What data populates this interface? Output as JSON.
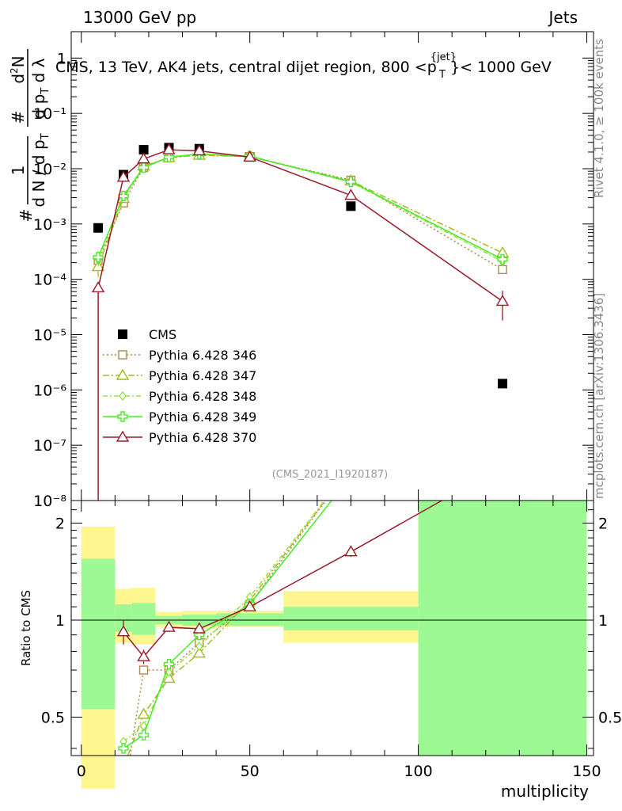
{
  "header": {
    "left": "13000 GeV pp",
    "right": "Jets"
  },
  "title": "CMS, 13 TeV, AK4 jets, central dijet region, 800 <p",
  "title_sup": "{jet}",
  "title_sub": "T",
  "title_end": "}< 1000 GeV",
  "watermark": "(CMS_2021_I1920187)",
  "side_top": "Rivet 4.1.0, ≥ 100k events",
  "side_bottom": "mcplots.cern.ch [arXiv:1306.3436]",
  "ratio_ylabel": "Ratio to CMS",
  "xlabel": "multiplicity",
  "chart_data": [
    {
      "type": "line",
      "panel": "main",
      "yscale": "log",
      "xlim": [
        -3,
        152
      ],
      "ylim": [
        1e-08,
        3
      ],
      "y_tick_labels": [
        "10⁻⁸",
        "10⁻⁷",
        "10⁻⁶",
        "10⁻⁵",
        "10⁻⁴",
        "10⁻³",
        "10⁻²",
        "10⁻¹",
        "1"
      ],
      "bins": [
        [
          0,
          10
        ],
        [
          10,
          15
        ],
        [
          15,
          22
        ],
        [
          22,
          30
        ],
        [
          30,
          40
        ],
        [
          40,
          60
        ],
        [
          60,
          100
        ],
        [
          100,
          150
        ]
      ],
      "legend_position": "left-middle",
      "series": [
        {
          "name": "CMS",
          "color": "#000000",
          "marker": "square-filled",
          "x": [
            5,
            12.5,
            18.5,
            26,
            35,
            50,
            80,
            125
          ],
          "y": [
            0.00085,
            0.0078,
            0.022,
            0.024,
            0.023,
            0.0163,
            0.0021,
            1.3e-06
          ]
        },
        {
          "name": "Pythia 6.428 346",
          "color": "#b08850",
          "marker": "square-open",
          "dash": "2,3",
          "x": [
            5,
            12.5,
            18.5,
            26,
            35,
            50,
            80,
            125
          ],
          "y": [
            0.00022,
            0.0024,
            0.0105,
            0.016,
            0.018,
            0.0165,
            0.0062,
            0.00015
          ],
          "yerr": [
            6e-05,
            0,
            0,
            0,
            0,
            0,
            0,
            2e-05
          ]
        },
        {
          "name": "Pythia 6.428 347",
          "color": "#a8b820",
          "marker": "triangle-open",
          "dash": "8,3,2,3",
          "x": [
            5,
            12.5,
            18.5,
            26,
            35,
            50,
            80,
            125
          ],
          "y": [
            0.00017,
            0.0029,
            0.0112,
            0.0158,
            0.0175,
            0.0165,
            0.006,
            0.0003
          ],
          "yerr": [
            6e-05,
            0,
            0,
            0,
            0,
            0,
            0,
            5e-05
          ]
        },
        {
          "name": "Pythia 6.428 348",
          "color": "#99e04a",
          "marker": "diamond-open",
          "dash": "6,3,2,3",
          "x": [
            5,
            12.5,
            18.5,
            26,
            35,
            50,
            80,
            125
          ],
          "y": [
            0.00023,
            0.0033,
            0.0108,
            0.016,
            0.0182,
            0.017,
            0.0057,
            0.00021
          ],
          "yerr": [
            6e-05,
            0,
            0,
            0,
            0,
            0,
            0,
            4e-05
          ]
        },
        {
          "name": "Pythia 6.428 349",
          "color": "#44ee22",
          "marker": "cross-open",
          "dash": "",
          "x": [
            5,
            12.5,
            18.5,
            26,
            35,
            50,
            80,
            125
          ],
          "y": [
            0.00025,
            0.0032,
            0.0105,
            0.0162,
            0.0185,
            0.0168,
            0.0058,
            0.00023
          ],
          "yerr": [
            7e-05,
            0,
            0,
            0,
            0,
            0,
            0,
            4e-05
          ]
        },
        {
          "name": "Pythia 6.428 370",
          "color": "#9b1b2b",
          "marker": "triangle-open",
          "dash": "",
          "x": [
            5,
            12.5,
            18.5,
            26,
            35,
            50,
            80,
            125
          ],
          "y": [
            7e-05,
            0.007,
            0.015,
            0.022,
            0.021,
            0.0162,
            0.0033,
            4e-05
          ],
          "yerr": [
            6e-05,
            0,
            0,
            0,
            0,
            0,
            0,
            2.2e-05
          ]
        }
      ]
    },
    {
      "type": "line",
      "panel": "ratio",
      "ylabel": "Ratio to CMS",
      "xlabel": "multiplicity",
      "xlim": [
        -3,
        152
      ],
      "ylim": [
        0.38,
        2.35
      ],
      "yscale": "log",
      "y_ticks": [
        0.5,
        1,
        2
      ],
      "x_ticks": [
        0,
        50,
        100,
        150
      ],
      "bands": [
        {
          "x0": 0,
          "x1": 10,
          "yellow": [
            0.3,
            1.95
          ],
          "green": [
            0.53,
            1.55
          ]
        },
        {
          "x0": 10,
          "x1": 15,
          "yellow": [
            0.85,
            1.25
          ],
          "green": [
            0.92,
            1.12
          ]
        },
        {
          "x0": 15,
          "x1": 22,
          "yellow": [
            0.84,
            1.26
          ],
          "green": [
            0.9,
            1.13
          ]
        },
        {
          "x0": 22,
          "x1": 30,
          "yellow": [
            0.95,
            1.06
          ],
          "green": [
            0.97,
            1.03
          ]
        },
        {
          "x0": 30,
          "x1": 40,
          "yellow": [
            0.94,
            1.07
          ],
          "green": [
            0.96,
            1.04
          ]
        },
        {
          "x0": 40,
          "x1": 60,
          "yellow": [
            0.95,
            1.07
          ],
          "green": [
            0.96,
            1.05
          ]
        },
        {
          "x0": 60,
          "x1": 100,
          "yellow": [
            0.85,
            1.23
          ],
          "green": [
            0.93,
            1.1
          ]
        },
        {
          "x0": 100,
          "x1": 150,
          "yellow": [
            0.38,
            2.35
          ],
          "green": [
            0.38,
            2.35
          ]
        }
      ],
      "series": [
        {
          "name": "Pythia 6.428 346",
          "color": "#b08850",
          "marker": "square-open",
          "dash": "2,3",
          "x": [
            12.5,
            18.5,
            26,
            35,
            50,
            80
          ],
          "y": [
            0.28,
            0.7,
            0.7,
            0.85,
            1.12,
            3.0
          ]
        },
        {
          "name": "Pythia 6.428 347",
          "color": "#a8b820",
          "marker": "triangle-open",
          "dash": "8,3,2,3",
          "x": [
            12.5,
            18.5,
            26,
            35,
            50,
            80
          ],
          "y": [
            0.35,
            0.51,
            0.66,
            0.79,
            1.15,
            3.0
          ]
        },
        {
          "name": "Pythia 6.428 348",
          "color": "#99e04a",
          "marker": "diamond-open",
          "dash": "6,3,2,3",
          "x": [
            12.5,
            18.5,
            26,
            35,
            50,
            80
          ],
          "y": [
            0.42,
            0.47,
            0.69,
            0.83,
            1.18,
            3.0
          ]
        },
        {
          "name": "Pythia 6.428 349",
          "color": "#44ee22",
          "marker": "cross-open",
          "dash": "",
          "x": [
            12.5,
            18.5,
            26,
            35,
            50,
            80
          ],
          "y": [
            0.4,
            0.44,
            0.73,
            0.9,
            1.12,
            2.8
          ]
        },
        {
          "name": "Pythia 6.428 370",
          "color": "#9b1b2b",
          "marker": "triangle-open",
          "dash": "",
          "x": [
            12.5,
            18.5,
            26,
            35,
            50,
            80,
            125
          ],
          "y": [
            0.92,
            0.77,
            0.95,
            0.94,
            1.1,
            1.63,
            3.0
          ],
          "yerr": [
            0.08,
            0.04,
            0.03,
            0.02,
            0.02,
            0.06,
            0
          ]
        }
      ]
    }
  ]
}
